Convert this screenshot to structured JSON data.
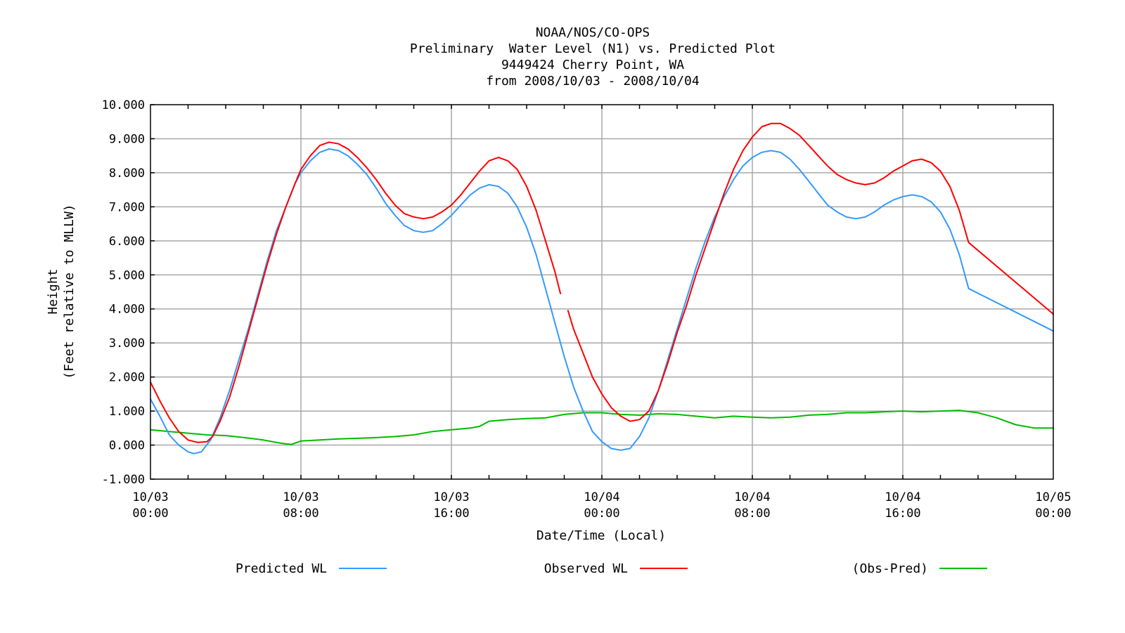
{
  "chart_data": {
    "type": "line",
    "title": [
      "NOAA/NOS/CO-OPS",
      "Preliminary  Water Level (N1) vs. Predicted Plot",
      "9449424 Cherry Point, WA",
      "from 2008/10/03 - 2008/10/04"
    ],
    "xlabel": "Date/Time (Local)",
    "ylabel": [
      "Height",
      "(Feet relative to MLLW)"
    ],
    "xlim_hours": [
      0,
      48
    ],
    "ylim": [
      -1,
      10
    ],
    "grid": true,
    "legend_position": "bottom",
    "y_ticks": [
      {
        "v": 10,
        "label": "10.000"
      },
      {
        "v": 9,
        "label": "9.000"
      },
      {
        "v": 8,
        "label": "8.000"
      },
      {
        "v": 7,
        "label": "7.000"
      },
      {
        "v": 6,
        "label": "6.000"
      },
      {
        "v": 5,
        "label": "5.000"
      },
      {
        "v": 4,
        "label": "4.000"
      },
      {
        "v": 3,
        "label": "3.000"
      },
      {
        "v": 2,
        "label": "2.000"
      },
      {
        "v": 1,
        "label": "1.000"
      },
      {
        "v": 0,
        "label": "0.000"
      },
      {
        "v": -1,
        "label": "-1.000"
      }
    ],
    "x_ticks": [
      {
        "h": 0,
        "date": "10/03",
        "time": "00:00"
      },
      {
        "h": 8,
        "date": "10/03",
        "time": "08:00"
      },
      {
        "h": 16,
        "date": "10/03",
        "time": "16:00"
      },
      {
        "h": 24,
        "date": "10/04",
        "time": "00:00"
      },
      {
        "h": 32,
        "date": "10/04",
        "time": "08:00"
      },
      {
        "h": 40,
        "date": "10/04",
        "time": "16:00"
      },
      {
        "h": 48,
        "date": "10/05",
        "time": "00:00"
      }
    ],
    "series": [
      {
        "name": "Predicted WL",
        "color": "#3399ff",
        "points": [
          [
            0,
            1.35
          ],
          [
            0.5,
            0.85
          ],
          [
            1,
            0.3
          ],
          [
            1.5,
            0.0
          ],
          [
            2,
            -0.2
          ],
          [
            2.3,
            -0.25
          ],
          [
            2.7,
            -0.2
          ],
          [
            3.2,
            0.15
          ],
          [
            3.7,
            0.8
          ],
          [
            4.2,
            1.6
          ],
          [
            4.7,
            2.5
          ],
          [
            5.2,
            3.4
          ],
          [
            5.7,
            4.4
          ],
          [
            6.2,
            5.4
          ],
          [
            6.7,
            6.3
          ],
          [
            7.2,
            7.0
          ],
          [
            7.7,
            7.7
          ],
          [
            8,
            8.0
          ],
          [
            8.5,
            8.35
          ],
          [
            9,
            8.6
          ],
          [
            9.5,
            8.7
          ],
          [
            10,
            8.65
          ],
          [
            10.5,
            8.5
          ],
          [
            11,
            8.25
          ],
          [
            11.5,
            7.95
          ],
          [
            12,
            7.55
          ],
          [
            12.5,
            7.1
          ],
          [
            13,
            6.75
          ],
          [
            13.5,
            6.45
          ],
          [
            14,
            6.3
          ],
          [
            14.5,
            6.25
          ],
          [
            15,
            6.3
          ],
          [
            15.5,
            6.5
          ],
          [
            16,
            6.75
          ],
          [
            16.5,
            7.05
          ],
          [
            17,
            7.35
          ],
          [
            17.5,
            7.55
          ],
          [
            18,
            7.65
          ],
          [
            18.5,
            7.6
          ],
          [
            19,
            7.4
          ],
          [
            19.5,
            7.0
          ],
          [
            20,
            6.4
          ],
          [
            20.5,
            5.6
          ],
          [
            21,
            4.6
          ],
          [
            21.5,
            3.6
          ],
          [
            22,
            2.6
          ],
          [
            22.5,
            1.7
          ],
          [
            23,
            1.0
          ],
          [
            23.5,
            0.4
          ],
          [
            24,
            0.1
          ],
          [
            24.5,
            -0.1
          ],
          [
            25,
            -0.15
          ],
          [
            25.5,
            -0.1
          ],
          [
            26,
            0.25
          ],
          [
            26.5,
            0.8
          ],
          [
            27,
            1.6
          ],
          [
            27.5,
            2.5
          ],
          [
            28,
            3.4
          ],
          [
            28.5,
            4.3
          ],
          [
            29,
            5.2
          ],
          [
            29.5,
            6.0
          ],
          [
            30,
            6.7
          ],
          [
            30.5,
            7.3
          ],
          [
            31,
            7.8
          ],
          [
            31.5,
            8.2
          ],
          [
            32,
            8.45
          ],
          [
            32.5,
            8.6
          ],
          [
            33,
            8.65
          ],
          [
            33.5,
            8.6
          ],
          [
            34,
            8.4
          ],
          [
            34.5,
            8.1
          ],
          [
            35,
            7.75
          ],
          [
            35.5,
            7.4
          ],
          [
            36,
            7.05
          ],
          [
            36.5,
            6.85
          ],
          [
            37,
            6.7
          ],
          [
            37.5,
            6.65
          ],
          [
            38,
            6.7
          ],
          [
            38.5,
            6.85
          ],
          [
            39,
            7.05
          ],
          [
            39.5,
            7.2
          ],
          [
            40,
            7.3
          ],
          [
            40.5,
            7.35
          ],
          [
            41,
            7.3
          ],
          [
            41.5,
            7.15
          ],
          [
            42,
            6.85
          ],
          [
            42.5,
            6.35
          ],
          [
            43,
            5.6
          ],
          [
            43.5,
            4.6
          ],
          [
            48,
            3.35
          ]
        ]
      },
      {
        "name": "Observed WL",
        "color": "#ff0000",
        "points": [
          [
            0,
            1.85
          ],
          [
            0.5,
            1.3
          ],
          [
            1,
            0.8
          ],
          [
            1.5,
            0.4
          ],
          [
            2,
            0.15
          ],
          [
            2.5,
            0.08
          ],
          [
            3,
            0.1
          ],
          [
            3.3,
            0.25
          ],
          [
            3.7,
            0.7
          ],
          [
            4.2,
            1.4
          ],
          [
            4.7,
            2.3
          ],
          [
            5.2,
            3.3
          ],
          [
            5.7,
            4.3
          ],
          [
            6.2,
            5.3
          ],
          [
            6.7,
            6.2
          ],
          [
            7.2,
            7.0
          ],
          [
            7.7,
            7.7
          ],
          [
            8,
            8.1
          ],
          [
            8.5,
            8.5
          ],
          [
            9,
            8.8
          ],
          [
            9.5,
            8.9
          ],
          [
            10,
            8.85
          ],
          [
            10.5,
            8.7
          ],
          [
            11,
            8.45
          ],
          [
            11.5,
            8.15
          ],
          [
            12,
            7.8
          ],
          [
            12.5,
            7.4
          ],
          [
            13,
            7.05
          ],
          [
            13.5,
            6.8
          ],
          [
            14,
            6.7
          ],
          [
            14.5,
            6.65
          ],
          [
            15,
            6.7
          ],
          [
            15.5,
            6.85
          ],
          [
            16,
            7.05
          ],
          [
            16.5,
            7.35
          ],
          [
            17,
            7.7
          ],
          [
            17.5,
            8.05
          ],
          [
            18,
            8.35
          ],
          [
            18.5,
            8.45
          ],
          [
            19,
            8.35
          ],
          [
            19.5,
            8.1
          ],
          [
            20,
            7.6
          ],
          [
            20.5,
            6.9
          ],
          [
            21,
            6.0
          ],
          [
            21.5,
            5.1
          ],
          [
            21.8,
            4.45
          ],
          null,
          [
            22.2,
            3.95
          ],
          [
            22.5,
            3.4
          ],
          [
            23,
            2.7
          ],
          [
            23.5,
            2.0
          ],
          [
            24,
            1.5
          ],
          [
            24.5,
            1.1
          ],
          [
            25,
            0.85
          ],
          [
            25.5,
            0.7
          ],
          [
            26,
            0.75
          ],
          [
            26.5,
            1.0
          ],
          [
            27,
            1.6
          ],
          [
            27.5,
            2.4
          ],
          [
            28,
            3.3
          ],
          [
            28.5,
            4.1
          ],
          [
            29,
            5.0
          ],
          [
            29.5,
            5.8
          ],
          [
            30,
            6.6
          ],
          [
            30.5,
            7.4
          ],
          [
            31,
            8.1
          ],
          [
            31.5,
            8.65
          ],
          [
            32,
            9.05
          ],
          [
            32.5,
            9.35
          ],
          [
            33,
            9.45
          ],
          [
            33.5,
            9.45
          ],
          [
            34,
            9.3
          ],
          [
            34.5,
            9.1
          ],
          [
            35,
            8.8
          ],
          [
            35.5,
            8.5
          ],
          [
            36,
            8.2
          ],
          [
            36.5,
            7.95
          ],
          [
            37,
            7.8
          ],
          [
            37.5,
            7.7
          ],
          [
            38,
            7.65
          ],
          [
            38.5,
            7.7
          ],
          [
            39,
            7.85
          ],
          [
            39.5,
            8.05
          ],
          [
            40,
            8.2
          ],
          [
            40.5,
            8.35
          ],
          [
            41,
            8.4
          ],
          [
            41.5,
            8.3
          ],
          [
            42,
            8.05
          ],
          [
            42.5,
            7.6
          ],
          [
            43,
            6.9
          ],
          [
            43.5,
            5.95
          ],
          [
            48,
            3.85
          ]
        ]
      },
      {
        "name": "(Obs-Pred)",
        "color": "#00bb00",
        "points": [
          [
            0,
            0.45
          ],
          [
            1,
            0.4
          ],
          [
            2,
            0.35
          ],
          [
            3,
            0.3
          ],
          [
            4,
            0.28
          ],
          [
            5,
            0.22
          ],
          [
            6,
            0.15
          ],
          [
            7,
            0.05
          ],
          [
            7.5,
            0.02
          ],
          [
            8,
            0.12
          ],
          [
            9,
            0.15
          ],
          [
            10,
            0.18
          ],
          [
            11,
            0.2
          ],
          [
            12,
            0.22
          ],
          [
            13,
            0.25
          ],
          [
            14,
            0.3
          ],
          [
            15,
            0.4
          ],
          [
            16,
            0.45
          ],
          [
            17,
            0.5
          ],
          [
            17.5,
            0.55
          ],
          [
            18,
            0.7
          ],
          [
            19,
            0.75
          ],
          [
            20,
            0.78
          ],
          [
            21,
            0.8
          ],
          [
            22,
            0.9
          ],
          [
            23,
            0.95
          ],
          [
            24,
            0.95
          ],
          [
            25,
            0.9
          ],
          [
            26,
            0.88
          ],
          [
            27,
            0.92
          ],
          [
            28,
            0.9
          ],
          [
            29,
            0.85
          ],
          [
            30,
            0.8
          ],
          [
            31,
            0.85
          ],
          [
            32,
            0.82
          ],
          [
            33,
            0.8
          ],
          [
            34,
            0.82
          ],
          [
            35,
            0.88
          ],
          [
            36,
            0.9
          ],
          [
            37,
            0.95
          ],
          [
            38,
            0.95
          ],
          [
            39,
            0.98
          ],
          [
            40,
            1.0
          ],
          [
            41,
            0.98
          ],
          [
            42,
            1.0
          ],
          [
            43,
            1.02
          ],
          [
            44,
            0.95
          ],
          [
            45,
            0.8
          ],
          [
            46,
            0.6
          ],
          [
            47,
            0.5
          ],
          [
            48,
            0.5
          ]
        ]
      }
    ]
  }
}
